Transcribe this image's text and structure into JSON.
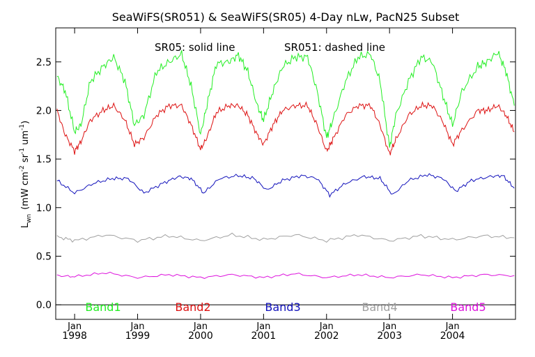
{
  "chart_data": {
    "type": "line",
    "title": "SeaWiFS(SR051) & SeaWiFS(SR05) 4-Day nLw, PacN25 Subset",
    "annotation_left": "SR05: solid line",
    "annotation_right": "SR051: dashed line",
    "ylabel_main": "L",
    "ylabel_sub": "wn",
    "ylabel_units": "(mW cm",
    "ylabel_sup1": "-2",
    "ylabel_sr": " sr",
    "ylabel_sup2": "-1",
    "ylabel_um": " um",
    "ylabel_sup3": "-1",
    "ylabel_close": ")",
    "xlim": [
      1997.7,
      2005.0
    ],
    "ylim": [
      -0.15,
      2.85
    ],
    "y_ticks": [
      0.0,
      0.5,
      1.0,
      1.5,
      2.0,
      2.5
    ],
    "y_tick_labels": [
      "0.0",
      "0.5",
      "1.0",
      "1.5",
      "2.0",
      "2.5"
    ],
    "x_ticks": [
      1998.0,
      1999.0,
      2000.0,
      2001.0,
      2002.0,
      2003.0,
      2004.0
    ],
    "x_tick_top_labels": [
      "Jan",
      "Jan",
      "Jan",
      "Jan",
      "Jan",
      "Jan",
      "Jan"
    ],
    "x_tick_bottom_labels": [
      "1998",
      "1999",
      "2000",
      "2001",
      "2002",
      "2003",
      "2004"
    ],
    "grid": false,
    "legend_placement": "bottom",
    "series": [
      {
        "name": "Band1",
        "color": "#22ee22",
        "x": [
          1997.72,
          1997.85,
          1998.0,
          1998.1,
          1998.25,
          1998.45,
          1998.62,
          1998.8,
          1998.95,
          1999.1,
          1999.3,
          1999.5,
          1999.7,
          1999.85,
          2000.0,
          2000.1,
          2000.25,
          2000.45,
          2000.6,
          2000.75,
          2000.9,
          2001.0,
          2001.15,
          2001.3,
          2001.5,
          2001.7,
          2001.85,
          2002.0,
          2002.1,
          2002.3,
          2002.5,
          2002.7,
          2002.85,
          2003.0,
          2003.1,
          2003.3,
          2003.5,
          2003.68,
          2003.85,
          2004.0,
          2004.15,
          2004.4,
          2004.55,
          2004.72,
          2004.85,
          2004.98
        ],
        "y": [
          2.35,
          2.2,
          1.78,
          1.85,
          2.3,
          2.45,
          2.55,
          2.3,
          1.85,
          1.95,
          2.4,
          2.5,
          2.58,
          2.25,
          1.75,
          2.05,
          2.48,
          2.5,
          2.57,
          2.4,
          2.05,
          1.9,
          2.2,
          2.45,
          2.55,
          2.55,
          2.2,
          1.72,
          1.9,
          2.3,
          2.55,
          2.58,
          2.3,
          1.62,
          1.95,
          2.3,
          2.55,
          2.5,
          2.15,
          1.85,
          2.2,
          2.45,
          2.5,
          2.6,
          2.4,
          2.05
        ]
      },
      {
        "name": "Band2",
        "color": "#dd1111",
        "x": [
          1997.72,
          1997.85,
          1998.0,
          1998.1,
          1998.25,
          1998.45,
          1998.62,
          1998.8,
          1998.95,
          1999.1,
          1999.3,
          1999.5,
          1999.7,
          1999.85,
          2000.0,
          2000.1,
          2000.25,
          2000.45,
          2000.6,
          2000.75,
          2000.9,
          2001.0,
          2001.15,
          2001.3,
          2001.5,
          2001.7,
          2001.85,
          2002.0,
          2002.1,
          2002.3,
          2002.5,
          2002.7,
          2002.85,
          2003.0,
          2003.1,
          2003.3,
          2003.5,
          2003.68,
          2003.85,
          2004.0,
          2004.15,
          2004.4,
          2004.55,
          2004.72,
          2004.85,
          2004.98
        ],
        "y": [
          2.0,
          1.75,
          1.58,
          1.68,
          1.9,
          2.0,
          2.05,
          1.9,
          1.65,
          1.72,
          1.95,
          2.05,
          2.05,
          1.85,
          1.6,
          1.72,
          1.98,
          2.05,
          2.05,
          1.95,
          1.75,
          1.65,
          1.85,
          2.0,
          2.05,
          2.05,
          1.85,
          1.58,
          1.7,
          1.95,
          2.05,
          2.05,
          1.85,
          1.55,
          1.7,
          1.95,
          2.05,
          2.05,
          1.88,
          1.65,
          1.8,
          2.0,
          2.0,
          2.05,
          1.95,
          1.78
        ]
      },
      {
        "name": "Band3",
        "color": "#1111bb",
        "x": [
          1997.72,
          1998.0,
          1998.3,
          1998.6,
          1998.85,
          1999.1,
          1999.4,
          1999.65,
          1999.85,
          2000.05,
          2000.3,
          2000.6,
          2000.85,
          2001.05,
          2001.3,
          2001.6,
          2001.85,
          2002.05,
          2002.3,
          2002.6,
          2002.85,
          2003.05,
          2003.3,
          2003.6,
          2003.85,
          2004.05,
          2004.3,
          2004.6,
          2004.8,
          2004.98
        ],
        "y": [
          1.28,
          1.15,
          1.25,
          1.3,
          1.3,
          1.15,
          1.25,
          1.32,
          1.3,
          1.15,
          1.3,
          1.33,
          1.3,
          1.18,
          1.28,
          1.33,
          1.3,
          1.13,
          1.25,
          1.32,
          1.3,
          1.13,
          1.28,
          1.34,
          1.3,
          1.17,
          1.28,
          1.32,
          1.33,
          1.2
        ]
      },
      {
        "name": "Band4",
        "color": "#a0a0a0",
        "x": [
          1997.72,
          1998.0,
          1998.5,
          1999.0,
          1999.5,
          2000.0,
          2000.5,
          2001.0,
          2001.5,
          2002.0,
          2002.5,
          2003.0,
          2003.5,
          2004.0,
          2004.5,
          2004.98
        ],
        "y": [
          0.7,
          0.66,
          0.72,
          0.66,
          0.71,
          0.66,
          0.72,
          0.67,
          0.72,
          0.66,
          0.72,
          0.66,
          0.71,
          0.67,
          0.71,
          0.69
        ]
      },
      {
        "name": "Band5",
        "color": "#dd11dd",
        "x": [
          1997.72,
          1998.0,
          1998.5,
          1999.0,
          1999.5,
          2000.0,
          2000.5,
          2001.0,
          2001.5,
          2002.0,
          2002.5,
          2003.0,
          2003.5,
          2004.0,
          2004.5,
          2004.98
        ],
        "y": [
          0.3,
          0.29,
          0.33,
          0.28,
          0.31,
          0.28,
          0.31,
          0.28,
          0.32,
          0.28,
          0.31,
          0.28,
          0.31,
          0.28,
          0.31,
          0.3
        ]
      }
    ]
  }
}
